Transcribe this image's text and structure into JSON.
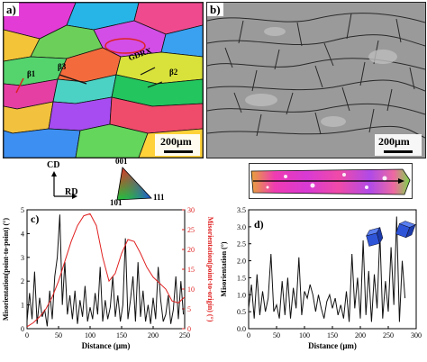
{
  "panels": {
    "a": {
      "tag": "a)",
      "scale_bar": "200μm",
      "annotations": [
        "GDRX",
        "β1",
        "β3",
        "β2"
      ]
    },
    "b": {
      "tag": "b)",
      "scale_bar": "200μm"
    },
    "axes_key": {
      "cd": "CD",
      "rd": "RD"
    },
    "ipf_key": {
      "top": "001",
      "left": "101",
      "right": "111"
    },
    "chart_colors": {
      "black": "#111111",
      "red": "#e02020"
    }
  },
  "chart_data": [
    {
      "type": "line",
      "panel": "c)",
      "xlabel": "Distance (μm)",
      "ylabel_left": "Misorientation(point-to-point) (°)",
      "ylabel_right": "Misorientation(point-to-origin) (°)",
      "xlim": [
        0,
        250
      ],
      "ylim_left": [
        0,
        5
      ],
      "ylim_right": [
        0,
        30
      ],
      "xticks": [
        "0",
        "50",
        "100",
        "150",
        "200",
        "250"
      ],
      "yticks_left": [
        "0",
        "1",
        "2",
        "3",
        "4",
        "5"
      ],
      "yticks_right": [
        "0",
        "5",
        "10",
        "15",
        "20",
        "25",
        "30"
      ],
      "series": [
        {
          "axis": "left",
          "color": "#111111",
          "x": [
            0,
            4,
            8,
            12,
            16,
            20,
            24,
            28,
            32,
            36,
            40,
            44,
            48,
            52,
            56,
            60,
            64,
            68,
            72,
            76,
            80,
            84,
            88,
            92,
            96,
            100,
            104,
            108,
            112,
            116,
            120,
            124,
            128,
            132,
            136,
            140,
            144,
            148,
            152,
            156,
            160,
            164,
            168,
            172,
            176,
            180,
            184,
            188,
            192,
            196,
            200,
            204,
            208,
            212,
            216,
            220,
            224,
            228,
            232,
            236,
            240,
            244,
            248
          ],
          "values": [
            0.3,
            1.5,
            0.4,
            2.4,
            0.2,
            1.3,
            0.5,
            0.8,
            0.1,
            1.6,
            0.4,
            2.2,
            3.0,
            4.8,
            1.0,
            2.8,
            0.6,
            1.4,
            0.4,
            1.6,
            0.2,
            1.2,
            0.5,
            1.8,
            0.3,
            0.9,
            0.4,
            1.5,
            0.6,
            2.6,
            0.3,
            1.2,
            0.4,
            0.9,
            2.2,
            0.5,
            1.4,
            0.3,
            1.0,
            3.8,
            0.4,
            1.2,
            2.2,
            0.3,
            2.8,
            0.5,
            1.6,
            0.3,
            1.0,
            0.2,
            1.3,
            0.4,
            2.6,
            1.2,
            0.3,
            0.6,
            1.4,
            0.2,
            0.8,
            2.2,
            0.4,
            2.0,
            0.6
          ]
        },
        {
          "axis": "right",
          "color": "#e02020",
          "x": [
            0,
            10,
            20,
            30,
            40,
            50,
            60,
            70,
            80,
            90,
            100,
            110,
            120,
            130,
            140,
            150,
            160,
            170,
            180,
            190,
            200,
            210,
            220,
            230,
            240,
            250
          ],
          "values": [
            0.5,
            1.5,
            3.0,
            5.0,
            8.0,
            12.0,
            17.0,
            22.0,
            26.0,
            28.5,
            29.0,
            26.0,
            18.0,
            12.0,
            14.0,
            19.0,
            22.5,
            22.0,
            19.0,
            15.5,
            13.0,
            11.5,
            10.0,
            7.0,
            6.5,
            8.0
          ]
        }
      ]
    },
    {
      "type": "line",
      "panel": "d)",
      "xlabel": "Distance (μm)",
      "ylabel": "Misorientation (°)",
      "xlim": [
        0,
        300
      ],
      "ylim": [
        0,
        3.5
      ],
      "xticks": [
        "0",
        "50",
        "100",
        "150",
        "200",
        "250",
        "300"
      ],
      "yticks": [
        "0.0",
        "0.5",
        "1.0",
        "1.5",
        "2.0",
        "2.5",
        "3.0",
        "3.5"
      ],
      "series": [
        {
          "color": "#111111",
          "x": [
            0,
            5,
            10,
            15,
            20,
            25,
            30,
            35,
            40,
            45,
            50,
            55,
            60,
            65,
            70,
            75,
            80,
            85,
            90,
            95,
            100,
            105,
            110,
            115,
            120,
            125,
            130,
            135,
            140,
            145,
            150,
            155,
            160,
            165,
            170,
            175,
            180,
            185,
            190,
            195,
            200,
            205,
            210,
            215,
            220,
            225,
            230,
            235,
            240,
            245,
            250,
            255,
            260,
            265,
            270,
            275,
            280
          ],
          "values": [
            0.6,
            1.3,
            0.3,
            1.6,
            0.4,
            1.1,
            0.5,
            0.9,
            2.2,
            0.5,
            0.7,
            0.3,
            1.4,
            0.4,
            1.5,
            0.3,
            1.2,
            0.6,
            2.1,
            0.4,
            1.1,
            0.9,
            1.3,
            1.0,
            0.5,
            1.0,
            0.6,
            0.3,
            0.8,
            1.0,
            0.6,
            0.9,
            0.4,
            0.7,
            0.3,
            1.1,
            0.2,
            2.2,
            0.6,
            1.5,
            0.3,
            2.6,
            0.4,
            1.7,
            0.2,
            1.6,
            0.6,
            2.8,
            0.3,
            1.4,
            0.5,
            2.4,
            0.7,
            3.3,
            0.2,
            2.0,
            0.9
          ]
        }
      ]
    }
  ]
}
